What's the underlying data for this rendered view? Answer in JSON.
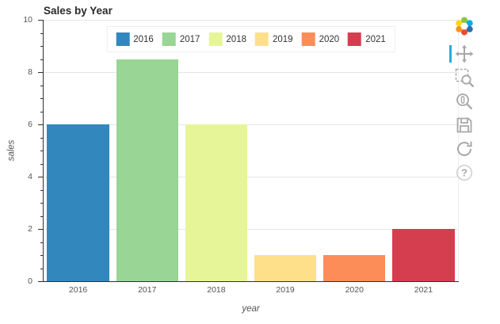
{
  "title": "Sales by Year",
  "chart_data": {
    "type": "bar",
    "title": "Sales by Year",
    "xlabel": "year",
    "ylabel": "sales",
    "categories": [
      "2016",
      "2017",
      "2018",
      "2019",
      "2020",
      "2021"
    ],
    "values": [
      6,
      8.5,
      6,
      1,
      1,
      2
    ],
    "colors": [
      "#3288bd",
      "#99d594",
      "#e6f598",
      "#fee08b",
      "#fc8d59",
      "#d53e4f"
    ],
    "ylim": [
      0,
      10
    ],
    "yticks": [
      0,
      2,
      4,
      6,
      8,
      10
    ],
    "grid": "horizontal-major",
    "legend": {
      "position": "top-center",
      "orientation": "horizontal",
      "entries": [
        "2016",
        "2017",
        "2018",
        "2019",
        "2020",
        "2021"
      ]
    }
  },
  "toolbar": {
    "logo": "bokeh-logo",
    "active_color": "#26aae1",
    "tools": [
      {
        "name": "pan",
        "active": true
      },
      {
        "name": "box-zoom",
        "active": false
      },
      {
        "name": "wheel-zoom",
        "active": false
      },
      {
        "name": "save",
        "active": false
      },
      {
        "name": "reset",
        "active": false
      },
      {
        "name": "help",
        "active": false
      }
    ]
  }
}
